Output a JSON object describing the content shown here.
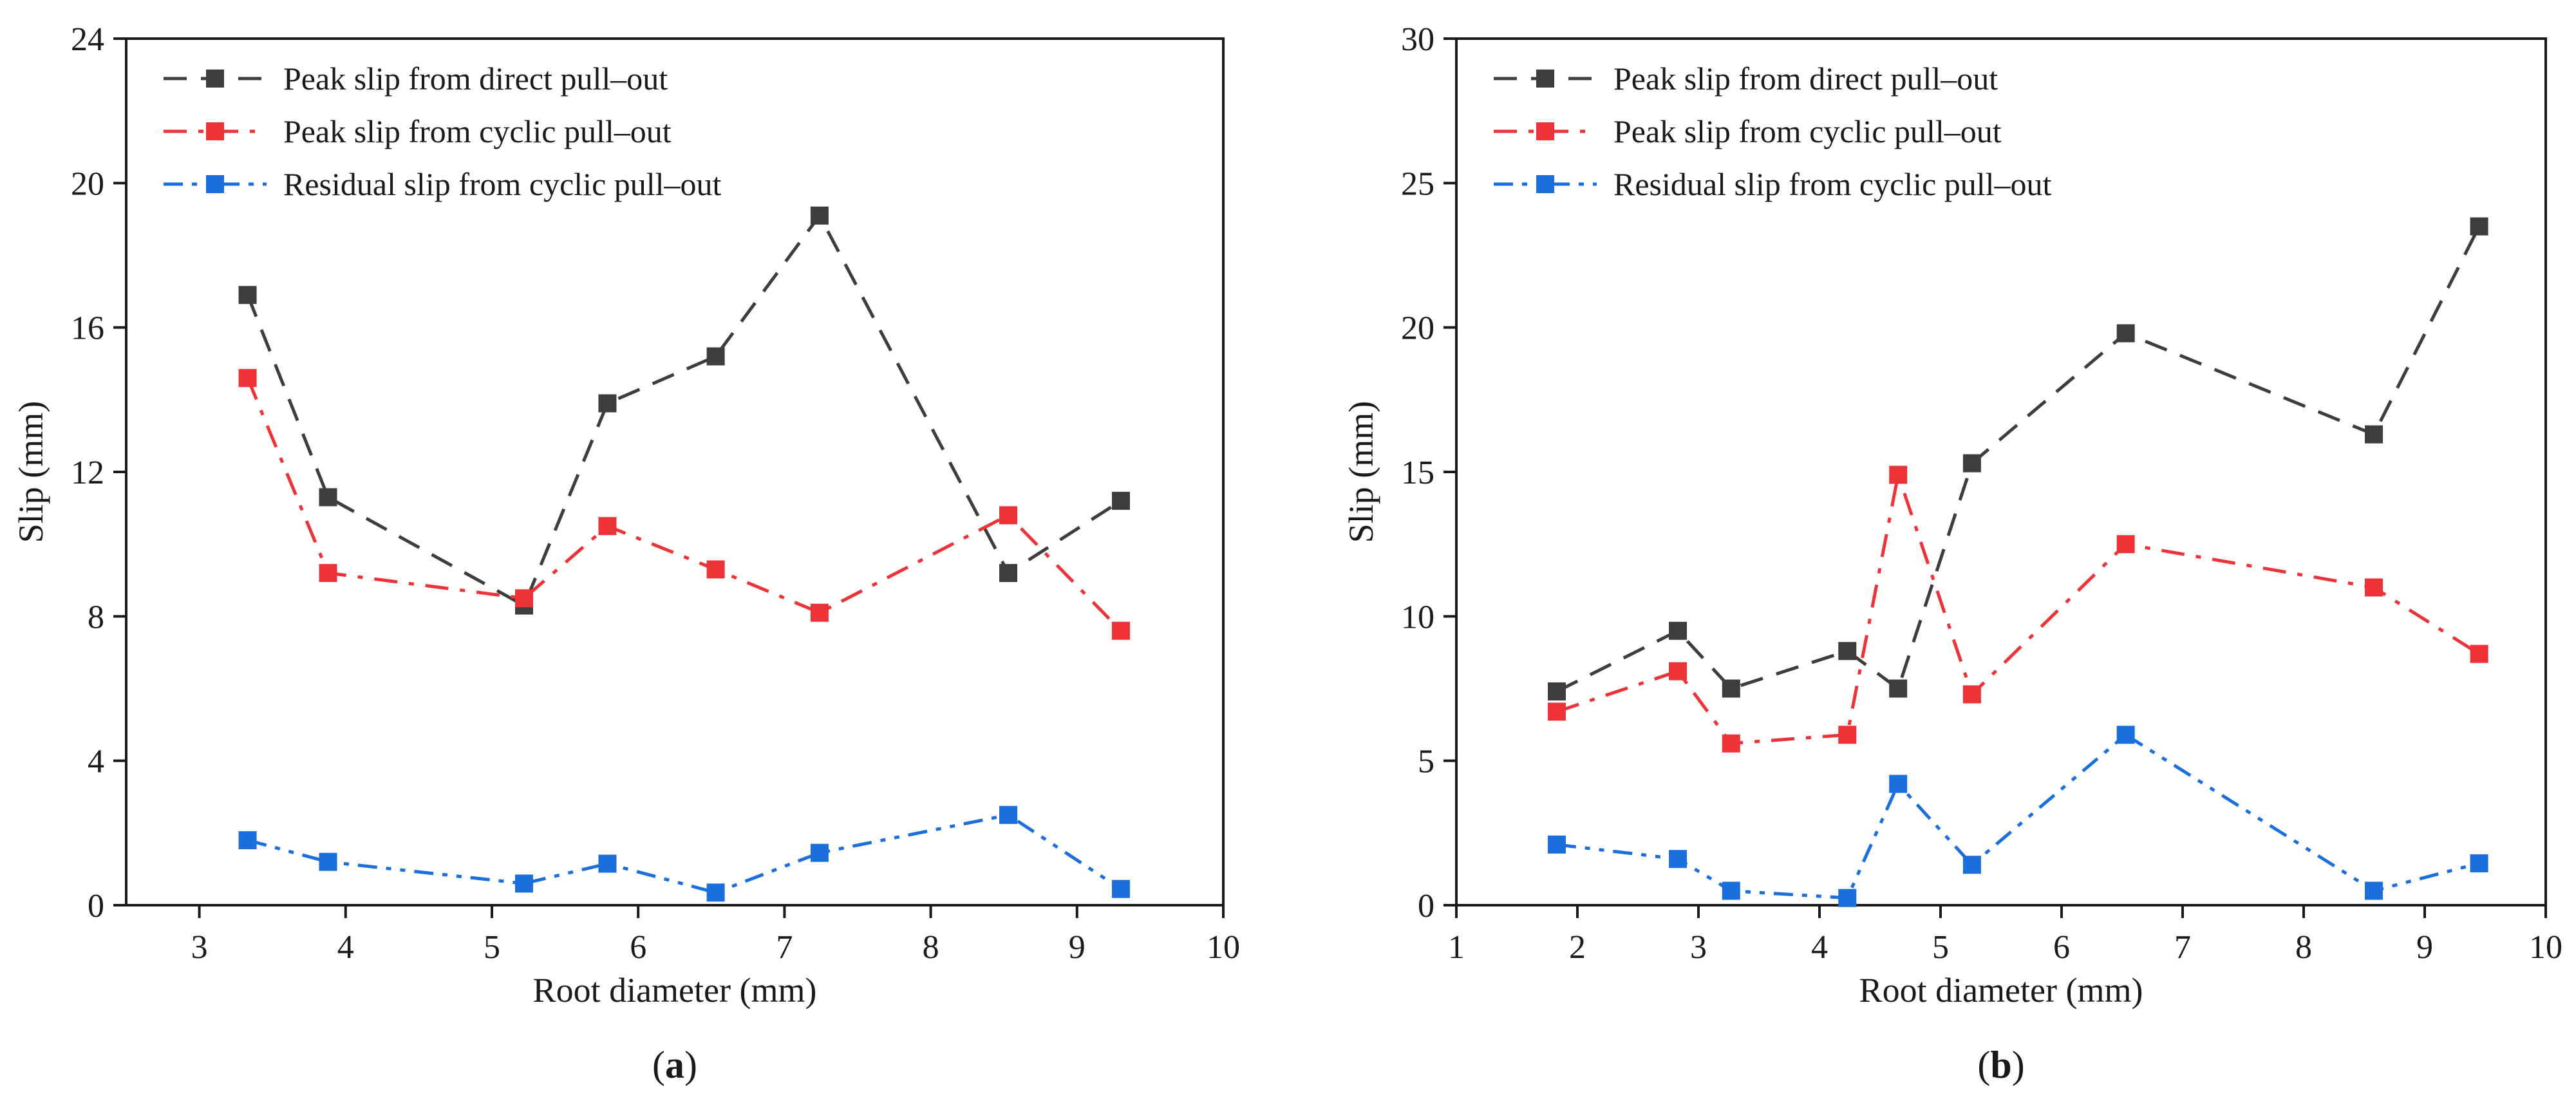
{
  "chart_data": [
    {
      "type": "line",
      "panel_label": "a",
      "xlabel": "Root diameter (mm)",
      "ylabel": "Slip (mm)",
      "xlim": [
        2.5,
        10
      ],
      "ylim": [
        0,
        24
      ],
      "xticks": [
        3,
        4,
        5,
        6,
        7,
        8,
        9,
        10
      ],
      "xtick_labels": [
        "3",
        "4",
        "5",
        "6",
        "7",
        "8",
        "9",
        "10"
      ],
      "yticks": [
        0,
        4,
        8,
        12,
        16,
        20,
        24
      ],
      "ytick_labels": [
        "0",
        "4",
        "8",
        "12",
        "16",
        "20",
        "24"
      ],
      "grid": false,
      "legend_position": "top-left",
      "series": [
        {
          "name": "Peak slip from direct pull–out",
          "color": "#3d3d3d",
          "dash": "dash",
          "x": [
            3.33,
            3.88,
            5.22,
            5.79,
            6.53,
            7.24,
            8.53,
            9.3
          ],
          "y": [
            16.9,
            11.3,
            8.3,
            13.9,
            15.2,
            19.1,
            9.2,
            11.2
          ]
        },
        {
          "name": "Peak slip from cyclic pull–out",
          "color": "#ee3338",
          "dash": "dashdot",
          "x": [
            3.33,
            3.88,
            5.22,
            5.79,
            6.53,
            7.24,
            8.53,
            9.3
          ],
          "y": [
            14.6,
            9.2,
            8.5,
            10.5,
            9.3,
            8.1,
            10.8,
            7.6
          ]
        },
        {
          "name": "Residual slip from cyclic pull–out",
          "color": "#1a6fdc",
          "dash": "dashdotdot",
          "x": [
            3.33,
            3.88,
            5.22,
            5.79,
            6.53,
            7.24,
            8.53,
            9.3
          ],
          "y": [
            1.8,
            1.2,
            0.6,
            1.15,
            0.35,
            1.45,
            2.5,
            0.45
          ]
        }
      ]
    },
    {
      "type": "line",
      "panel_label": "b",
      "xlabel": "Root diameter (mm)",
      "ylabel": "Slip (mm)",
      "xlim": [
        1,
        10
      ],
      "ylim": [
        0,
        30
      ],
      "xticks": [
        1,
        2,
        3,
        4,
        5,
        6,
        7,
        8,
        9,
        10
      ],
      "xtick_labels": [
        "1",
        "2",
        "3",
        "4",
        "5",
        "6",
        "7",
        "8",
        "9",
        "10"
      ],
      "yticks": [
        0,
        5,
        10,
        15,
        20,
        25,
        30
      ],
      "ytick_labels": [
        "0",
        "5",
        "10",
        "15",
        "20",
        "25",
        "30"
      ],
      "grid": false,
      "legend_position": "top-left",
      "series": [
        {
          "name": "Peak slip from direct pull–out",
          "color": "#3d3d3d",
          "dash": "dash",
          "x": [
            1.83,
            2.83,
            3.27,
            4.23,
            4.65,
            5.26,
            6.53,
            8.58,
            9.45
          ],
          "y": [
            7.4,
            9.5,
            7.5,
            8.8,
            7.5,
            15.3,
            19.8,
            16.3,
            23.5
          ]
        },
        {
          "name": "Peak slip from cyclic pull–out",
          "color": "#ee3338",
          "dash": "dashdot",
          "x": [
            1.83,
            2.83,
            3.27,
            4.23,
            4.65,
            5.26,
            6.53,
            8.58,
            9.45
          ],
          "y": [
            6.7,
            8.1,
            5.6,
            5.9,
            14.9,
            7.3,
            12.5,
            11.0,
            8.7
          ]
        },
        {
          "name": "Residual slip from cyclic pull–out",
          "color": "#1a6fdc",
          "dash": "dashdotdot",
          "x": [
            1.83,
            2.83,
            3.27,
            4.23,
            4.65,
            5.26,
            6.53,
            8.58,
            9.45
          ],
          "y": [
            2.1,
            1.6,
            0.5,
            0.25,
            4.2,
            1.4,
            5.9,
            0.5,
            1.45
          ]
        }
      ]
    }
  ]
}
